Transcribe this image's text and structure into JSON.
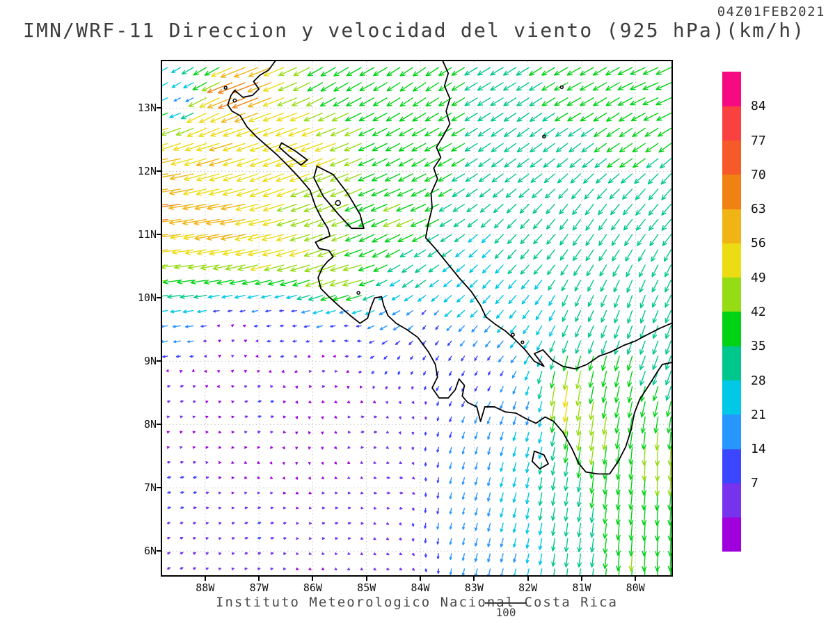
{
  "header": {
    "timestamp": "04Z01FEB2021",
    "title": "IMN/WRF-11 Direccion y velocidad del viento (925 hPa)(km/h)"
  },
  "footer": {
    "credit": "Instituto Meteorologico Nacional Costa Rica",
    "reference_vector_label": "100"
  },
  "chart_data": {
    "type": "vector_field",
    "title": "IMN/WRF-11 Direccion y velocidad del viento (925 hPa)(km/h)",
    "model": "IMN/WRF-11",
    "variable": "Direccion y velocidad del viento",
    "level": "925 hPa",
    "units": "km/h",
    "valid_time": "04Z01FEB2021",
    "reference_vector_kmh": 100,
    "grid_spacing_deg": 0.24,
    "x_axis": {
      "range": [
        -88.8,
        -79.33
      ],
      "tick_values": [
        -88,
        -87,
        -86,
        -85,
        -84,
        -83,
        -82,
        -81,
        -80
      ],
      "tick_labels": [
        "88W",
        "87W",
        "86W",
        "85W",
        "84W",
        "83W",
        "82W",
        "81W",
        "80W"
      ]
    },
    "y_axis": {
      "range": [
        5.62,
        13.74
      ],
      "tick_values": [
        13,
        12,
        11,
        10,
        9,
        8,
        7,
        6
      ],
      "tick_labels": [
        "13N",
        "12N",
        "11N",
        "10N",
        "9N",
        "8N",
        "7N",
        "6N"
      ]
    },
    "colorbar": {
      "labeled_levels": [
        7,
        14,
        21,
        28,
        35,
        42,
        49,
        56,
        63,
        70,
        77,
        84
      ],
      "colors": [
        "#a000dc",
        "#7732ee",
        "#3c46ff",
        "#2896ff",
        "#00c8e6",
        "#00c88c",
        "#00d214",
        "#96dc14",
        "#ecdc14",
        "#f0b414",
        "#f08214",
        "#f55a28",
        "#fa4141",
        "#f50a82"
      ]
    },
    "wind_field_control_points": [
      [
        -88.7,
        12.6,
        -52,
        -18
      ],
      [
        -88.7,
        12.0,
        -62,
        -10
      ],
      [
        -88.7,
        11.4,
        -66,
        -8
      ],
      [
        -88.7,
        10.8,
        -58,
        -6
      ],
      [
        -88.7,
        10.3,
        -45,
        -6
      ],
      [
        -88.7,
        9.95,
        -26,
        -3
      ],
      [
        -88.7,
        9.6,
        -15,
        -2
      ],
      [
        -87.5,
        11.2,
        -62,
        -10
      ],
      [
        -86.8,
        10.9,
        -55,
        -12
      ],
      [
        -86.2,
        10.7,
        -48,
        -14
      ],
      [
        -85.6,
        10.5,
        -42,
        -16
      ],
      [
        -87.6,
        12.3,
        -55,
        -16
      ],
      [
        -86.7,
        12.0,
        -50,
        -18
      ],
      [
        -86.0,
        12.35,
        -52,
        -18
      ],
      [
        -85.8,
        11.7,
        -44,
        -18
      ],
      [
        -87.9,
        13.0,
        -48,
        -24
      ],
      [
        -87.3,
        13.3,
        -65,
        -25
      ],
      [
        -88.5,
        13.55,
        -20,
        -12
      ],
      [
        -88.35,
        13.15,
        -12,
        -6
      ],
      [
        -88.0,
        13.65,
        -30,
        -18
      ],
      [
        -85.5,
        13.5,
        -34,
        -20
      ],
      [
        -84.0,
        13.4,
        -30,
        -20
      ],
      [
        -82.5,
        13.5,
        -30,
        -18
      ],
      [
        -81.0,
        13.4,
        -32,
        -18
      ],
      [
        -79.6,
        13.3,
        -36,
        -16
      ],
      [
        -80.0,
        12.5,
        -30,
        -20
      ],
      [
        -82.0,
        12.5,
        -28,
        -20
      ],
      [
        -83.8,
        12.3,
        -33,
        -18
      ],
      [
        -84.3,
        11.3,
        -40,
        -16
      ],
      [
        -79.5,
        11.5,
        -22,
        -26
      ],
      [
        -80.8,
        11.0,
        -18,
        -26
      ],
      [
        -82.0,
        10.8,
        -20,
        -22
      ],
      [
        -79.5,
        10.2,
        -14,
        -28
      ],
      [
        -81.0,
        9.9,
        -12,
        -26
      ],
      [
        -82.5,
        10.2,
        -18,
        -20
      ],
      [
        -84.5,
        10.9,
        -35,
        -18
      ],
      [
        -84.0,
        10.4,
        -25,
        -18
      ],
      [
        -85.2,
        10.35,
        -45,
        -12
      ],
      [
        -83.3,
        10.0,
        -18,
        -16
      ],
      [
        -84.5,
        9.9,
        -18,
        -10
      ],
      [
        -87.5,
        9.3,
        5,
        2
      ],
      [
        -88.5,
        8.5,
        7,
        2
      ],
      [
        -87.0,
        8.3,
        8,
        2
      ],
      [
        -86.5,
        9.6,
        -8,
        0
      ],
      [
        -85.3,
        9.4,
        -8,
        1
      ],
      [
        -85.8,
        8.8,
        6,
        1
      ],
      [
        -85.0,
        8.0,
        7,
        1
      ],
      [
        -88.5,
        7.0,
        8,
        2
      ],
      [
        -87.0,
        6.3,
        7,
        2
      ],
      [
        -85.5,
        6.5,
        6,
        1
      ],
      [
        -84.5,
        7.0,
        7,
        0
      ],
      [
        -84.2,
        8.3,
        3,
        -4
      ],
      [
        -84.3,
        8.85,
        -4,
        -7
      ],
      [
        -84.5,
        5.8,
        5,
        -2
      ],
      [
        -88.6,
        5.8,
        6,
        3
      ],
      [
        -83.5,
        8.8,
        -5,
        -10
      ],
      [
        -83.8,
        9.6,
        -6,
        -8
      ],
      [
        -83.0,
        7.5,
        -4,
        -16
      ],
      [
        -83.5,
        6.5,
        -3,
        -14
      ],
      [
        -82.5,
        6.0,
        -5,
        -20
      ],
      [
        -82.3,
        7.2,
        -6,
        -22
      ],
      [
        -82.0,
        8.3,
        -6,
        -18
      ],
      [
        -82.7,
        8.9,
        -4,
        -8
      ],
      [
        -82.4,
        9.3,
        -14,
        -16
      ],
      [
        -81.3,
        8.5,
        -8,
        -50
      ],
      [
        -80.9,
        8.0,
        -6,
        -45
      ],
      [
        -81.6,
        7.0,
        -5,
        -30
      ],
      [
        -81.0,
        6.0,
        -4,
        -32
      ],
      [
        -80.3,
        7.2,
        -4,
        -40
      ],
      [
        -80.0,
        6.0,
        -3,
        -42
      ],
      [
        -79.6,
        7.5,
        -2,
        -44
      ],
      [
        -79.5,
        6.2,
        -2,
        -42
      ],
      [
        -80.2,
        8.6,
        -8,
        -38
      ],
      [
        -79.6,
        9.0,
        -12,
        -32
      ],
      [
        -79.9,
        9.9,
        -10,
        -30
      ]
    ]
  },
  "map": {
    "frame_color": "#000000",
    "grid_color": "#c3c3c3",
    "coast_color": "#000000",
    "polylines": [
      [
        [
          -86.7,
          13.74
        ],
        [
          -86.82,
          13.6
        ],
        [
          -86.98,
          13.52
        ],
        [
          -87.1,
          13.42
        ],
        [
          -87.0,
          13.3
        ],
        [
          -87.12,
          13.2
        ],
        [
          -87.3,
          13.17
        ],
        [
          -87.45,
          13.28
        ],
        [
          -87.52,
          13.2
        ],
        [
          -87.58,
          13.05
        ],
        [
          -87.5,
          12.95
        ],
        [
          -87.35,
          12.88
        ],
        [
          -87.22,
          12.7
        ],
        [
          -87.05,
          12.55
        ],
        [
          -86.85,
          12.4
        ],
        [
          -86.65,
          12.25
        ],
        [
          -86.45,
          12.08
        ],
        [
          -86.25,
          11.9
        ],
        [
          -86.05,
          11.7
        ],
        [
          -85.95,
          11.45
        ],
        [
          -85.85,
          11.28
        ],
        [
          -85.72,
          11.1
        ],
        [
          -85.68,
          10.98
        ],
        [
          -85.82,
          10.93
        ],
        [
          -85.95,
          10.88
        ],
        [
          -85.88,
          10.78
        ],
        [
          -85.7,
          10.75
        ],
        [
          -85.62,
          10.65
        ],
        [
          -85.72,
          10.58
        ],
        [
          -85.82,
          10.48
        ],
        [
          -85.9,
          10.32
        ],
        [
          -85.85,
          10.15
        ],
        [
          -85.7,
          10.02
        ],
        [
          -85.52,
          9.88
        ],
        [
          -85.3,
          9.72
        ],
        [
          -85.12,
          9.6
        ],
        [
          -84.98,
          9.68
        ],
        [
          -84.92,
          9.85
        ],
        [
          -84.85,
          10.0
        ],
        [
          -84.72,
          10.02
        ],
        [
          -84.68,
          9.88
        ],
        [
          -84.6,
          9.72
        ],
        [
          -84.45,
          9.6
        ],
        [
          -84.25,
          9.5
        ],
        [
          -84.05,
          9.38
        ],
        [
          -83.85,
          9.15
        ],
        [
          -83.72,
          8.95
        ],
        [
          -83.68,
          8.75
        ],
        [
          -83.78,
          8.58
        ],
        [
          -83.65,
          8.42
        ],
        [
          -83.48,
          8.42
        ],
        [
          -83.35,
          8.55
        ],
        [
          -83.28,
          8.72
        ],
        [
          -83.18,
          8.62
        ],
        [
          -83.22,
          8.45
        ],
        [
          -83.12,
          8.35
        ],
        [
          -82.95,
          8.28
        ],
        [
          -82.88,
          8.05
        ],
        [
          -82.8,
          8.28
        ],
        [
          -82.62,
          8.28
        ],
        [
          -82.42,
          8.2
        ],
        [
          -82.22,
          8.18
        ],
        [
          -82.05,
          8.1
        ],
        [
          -81.85,
          8.02
        ],
        [
          -81.68,
          8.12
        ],
        [
          -81.52,
          8.05
        ],
        [
          -81.35,
          7.88
        ],
        [
          -81.18,
          7.62
        ],
        [
          -81.05,
          7.38
        ],
        [
          -80.92,
          7.25
        ],
        [
          -80.7,
          7.22
        ],
        [
          -80.48,
          7.22
        ],
        [
          -80.32,
          7.42
        ],
        [
          -80.18,
          7.65
        ],
        [
          -80.08,
          7.92
        ],
        [
          -80.02,
          8.18
        ],
        [
          -79.92,
          8.4
        ],
        [
          -79.75,
          8.62
        ],
        [
          -79.58,
          8.85
        ],
        [
          -79.5,
          8.95
        ],
        [
          -79.33,
          8.98
        ]
      ],
      [
        [
          -83.58,
          13.74
        ],
        [
          -83.48,
          13.55
        ],
        [
          -83.55,
          13.35
        ],
        [
          -83.45,
          13.15
        ],
        [
          -83.52,
          12.95
        ],
        [
          -83.45,
          12.75
        ],
        [
          -83.58,
          12.55
        ],
        [
          -83.7,
          12.38
        ],
        [
          -83.62,
          12.22
        ],
        [
          -83.75,
          12.05
        ],
        [
          -83.68,
          11.88
        ],
        [
          -83.8,
          11.65
        ],
        [
          -83.78,
          11.42
        ],
        [
          -83.85,
          11.18
        ],
        [
          -83.9,
          10.95
        ],
        [
          -83.72,
          10.78
        ],
        [
          -83.5,
          10.55
        ],
        [
          -83.28,
          10.32
        ],
        [
          -83.05,
          10.1
        ],
        [
          -82.88,
          9.88
        ],
        [
          -82.78,
          9.7
        ],
        [
          -82.6,
          9.58
        ],
        [
          -82.42,
          9.48
        ],
        [
          -82.25,
          9.35
        ],
        [
          -82.05,
          9.18
        ],
        [
          -81.88,
          9.0
        ],
        [
          -81.7,
          8.92
        ],
        [
          -81.88,
          9.12
        ],
        [
          -81.72,
          9.18
        ],
        [
          -81.55,
          9.02
        ],
        [
          -81.35,
          8.92
        ],
        [
          -81.12,
          8.88
        ],
        [
          -80.9,
          8.95
        ],
        [
          -80.68,
          9.08
        ],
        [
          -80.45,
          9.15
        ],
        [
          -80.22,
          9.25
        ],
        [
          -80.0,
          9.32
        ],
        [
          -79.78,
          9.42
        ],
        [
          -79.55,
          9.52
        ],
        [
          -79.33,
          9.6
        ]
      ],
      [
        [
          -85.92,
          12.08
        ],
        [
          -85.62,
          11.95
        ],
        [
          -85.35,
          11.65
        ],
        [
          -85.12,
          11.32
        ],
        [
          -85.05,
          11.1
        ],
        [
          -85.28,
          11.1
        ],
        [
          -85.52,
          11.32
        ],
        [
          -85.8,
          11.6
        ],
        [
          -85.98,
          11.9
        ],
        [
          -85.92,
          12.08
        ]
      ],
      [
        [
          -86.58,
          12.45
        ],
        [
          -86.32,
          12.32
        ],
        [
          -86.1,
          12.18
        ],
        [
          -86.22,
          12.1
        ],
        [
          -86.45,
          12.25
        ],
        [
          -86.62,
          12.38
        ],
        [
          -86.58,
          12.45
        ]
      ],
      [
        [
          -81.88,
          7.58
        ],
        [
          -81.7,
          7.52
        ],
        [
          -81.62,
          7.38
        ],
        [
          -81.78,
          7.3
        ],
        [
          -81.92,
          7.42
        ],
        [
          -81.88,
          7.58
        ]
      ]
    ],
    "island_dots": [
      {
        "lon": -85.53,
        "lat": 11.5,
        "r": 3.5
      },
      {
        "lon": -81.7,
        "lat": 12.55,
        "r": 2.0
      },
      {
        "lon": -81.37,
        "lat": 13.33,
        "r": 2.0
      },
      {
        "lon": -82.28,
        "lat": 9.42,
        "r": 2.2
      },
      {
        "lon": -82.1,
        "lat": 9.3,
        "r": 1.8
      },
      {
        "lon": -85.15,
        "lat": 10.08,
        "r": 2.0
      },
      {
        "lon": -87.45,
        "lat": 13.12,
        "r": 2.2
      },
      {
        "lon": -87.62,
        "lat": 13.32,
        "r": 2.0
      }
    ]
  }
}
